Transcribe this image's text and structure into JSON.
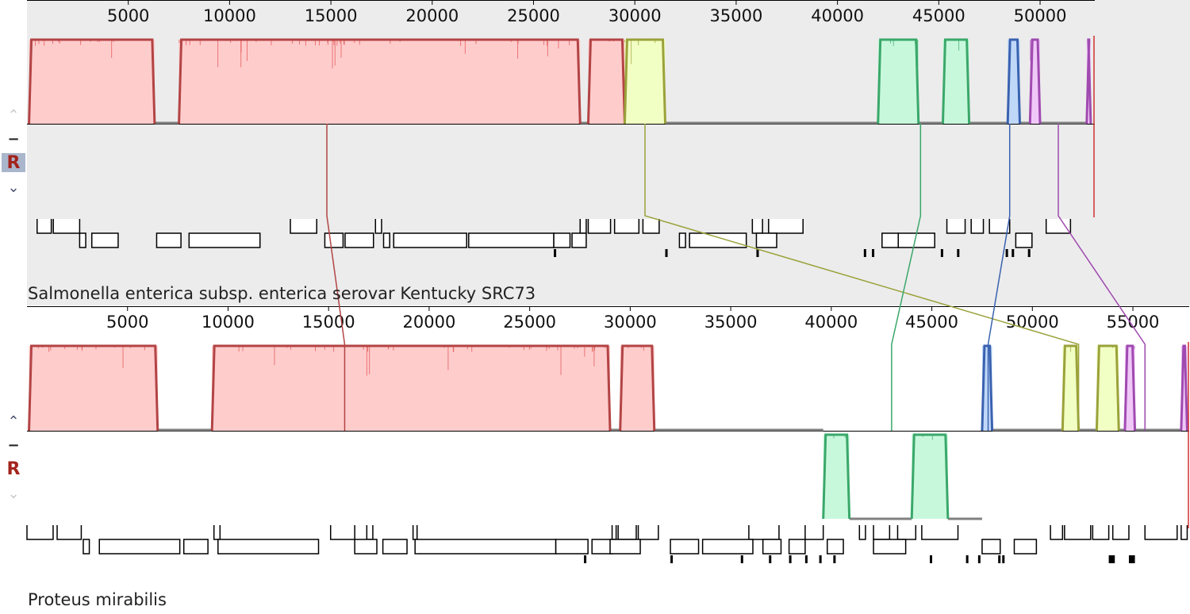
{
  "colors": {
    "red": "#b34445",
    "red_fill": "#ffcccc",
    "red_spike": "#e05050",
    "olive": "#9aa23a",
    "olive_fill": "#f2ffc4",
    "green": "#3aa86a",
    "green_fill": "#c8f8dc",
    "blue": "#3a62b0",
    "blue_fill": "#c0d8f8",
    "purple": "#a04ab0",
    "purple_fill": "#f0c8f8",
    "gap": "#808080",
    "panel1_bg": "#ececec",
    "panel2_bg": "#ffffff"
  },
  "panels": [
    {
      "id": "g1",
      "name": "Salmonella enterica subsp. enterica serovar Kentucky SRC73",
      "genome_length": 52700,
      "tick_values": [
        5000,
        10000,
        15000,
        20000,
        25000,
        30000,
        35000,
        40000,
        45000,
        50000
      ],
      "controls": {
        "up": "⌃",
        "minus": "−",
        "reverse": "R",
        "down": "⌄"
      },
      "blocks": [
        {
          "color": "red",
          "start": 100,
          "end": 6300,
          "strand": "+"
        },
        {
          "color": "red",
          "start": 7500,
          "end": 27300,
          "strand": "+"
        },
        {
          "color": "red",
          "start": 27700,
          "end": 29500,
          "strand": "+"
        },
        {
          "color": "olive",
          "start": 29500,
          "end": 31500,
          "strand": "+"
        },
        {
          "color": "green",
          "start": 42000,
          "end": 44000,
          "strand": "+"
        },
        {
          "color": "green",
          "start": 45200,
          "end": 46500,
          "strand": "+"
        },
        {
          "color": "blue",
          "start": 48400,
          "end": 49000,
          "strand": "+"
        },
        {
          "color": "purple",
          "start": 49500,
          "end": 50000,
          "strand": "+"
        },
        {
          "color": "purple",
          "start": 52300,
          "end": 52500,
          "strand": "+"
        }
      ],
      "genes_top": [
        [
          500,
          1200
        ],
        [
          1300,
          2600
        ],
        [
          13000,
          14300
        ],
        [
          17200,
          17500
        ],
        [
          27300,
          27600
        ],
        [
          27700,
          28800
        ],
        [
          29000,
          30200
        ],
        [
          30400,
          31200
        ],
        [
          35800,
          36300
        ],
        [
          36600,
          38300
        ],
        [
          45400,
          46300
        ],
        [
          46600,
          47200
        ],
        [
          47500,
          48500
        ],
        [
          50300,
          51500
        ]
      ],
      "genes_mid": [
        [
          2600,
          2900
        ],
        [
          3200,
          4500
        ],
        [
          6400,
          7600
        ],
        [
          8000,
          11500
        ],
        [
          14700,
          15600
        ],
        [
          15700,
          17100
        ],
        [
          17600,
          17900
        ],
        [
          18100,
          21700
        ],
        [
          21800,
          26000
        ],
        [
          26000,
          26800
        ],
        [
          26900,
          27600
        ],
        [
          32200,
          32500
        ],
        [
          32700,
          35500
        ],
        [
          36000,
          37000
        ],
        [
          42200,
          43000
        ],
        [
          43000,
          44800
        ],
        [
          48800,
          49600
        ]
      ],
      "genes_low": [
        [
          26000,
          26100
        ],
        [
          31500,
          31600
        ],
        [
          36000,
          36100
        ],
        [
          41300,
          41400
        ],
        [
          41700,
          41800
        ],
        [
          45100,
          45200
        ],
        [
          45900,
          46000
        ],
        [
          48300,
          48400
        ],
        [
          48600,
          48700
        ],
        [
          49400,
          49500
        ]
      ]
    },
    {
      "id": "g2",
      "name": "Proteus mirabilis",
      "genome_length": 57800,
      "tick_values": [
        5000,
        10000,
        15000,
        20000,
        25000,
        30000,
        35000,
        40000,
        45000,
        50000,
        55000
      ],
      "controls": {
        "up": "⌃",
        "minus": "−",
        "reverse": "R",
        "down": "⌄"
      },
      "blocks": [
        {
          "color": "red",
          "start": 100,
          "end": 6500,
          "strand": "+"
        },
        {
          "color": "red",
          "start": 9200,
          "end": 29000,
          "strand": "+"
        },
        {
          "color": "red",
          "start": 29500,
          "end": 31200,
          "strand": "+"
        },
        {
          "color": "green",
          "start": 39600,
          "end": 40900,
          "strand": "-"
        },
        {
          "color": "green",
          "start": 44000,
          "end": 45800,
          "strand": "-"
        },
        {
          "color": "blue",
          "start": 47500,
          "end": 48000,
          "strand": "+"
        },
        {
          "color": "olive",
          "start": 51500,
          "end": 52300,
          "strand": "+"
        },
        {
          "color": "olive",
          "start": 53200,
          "end": 54300,
          "strand": "+"
        },
        {
          "color": "purple",
          "start": 54600,
          "end": 55100,
          "strand": "+"
        },
        {
          "color": "purple",
          "start": 57400,
          "end": 57700,
          "strand": "+"
        }
      ],
      "genes_top": [
        [
          0,
          1300
        ],
        [
          1500,
          2700
        ],
        [
          9300,
          9600
        ],
        [
          15100,
          16300
        ],
        [
          16900,
          17200
        ],
        [
          19200,
          19400
        ],
        [
          29100,
          29300
        ],
        [
          29400,
          30300
        ],
        [
          30400,
          31400
        ],
        [
          35900,
          37400
        ],
        [
          38700,
          39600
        ],
        [
          41400,
          41700
        ],
        [
          42100,
          42900
        ],
        [
          43300,
          44200
        ],
        [
          44500,
          46300
        ],
        [
          50900,
          51500
        ],
        [
          51600,
          52900
        ],
        [
          53000,
          53800
        ],
        [
          54000,
          54800
        ],
        [
          55600,
          57200
        ],
        [
          57400,
          57700
        ]
      ],
      "genes_mid": [
        [
          2800,
          3100
        ],
        [
          3600,
          7600
        ],
        [
          7800,
          9000
        ],
        [
          9500,
          14500
        ],
        [
          16300,
          17400
        ],
        [
          17700,
          18900
        ],
        [
          19300,
          26300
        ],
        [
          26300,
          27900
        ],
        [
          28100,
          29100
        ],
        [
          29000,
          30500
        ],
        [
          32000,
          33400
        ],
        [
          33600,
          36100
        ],
        [
          36600,
          37500
        ],
        [
          37900,
          38700
        ],
        [
          39800,
          40600
        ],
        [
          42100,
          43700
        ],
        [
          47500,
          48400
        ],
        [
          49100,
          50200
        ]
      ],
      "genes_low": [
        [
          27700,
          27800
        ],
        [
          32000,
          32100
        ],
        [
          35500,
          35600
        ],
        [
          36900,
          37000
        ],
        [
          37900,
          38000
        ],
        [
          38700,
          38800
        ],
        [
          39400,
          39500
        ],
        [
          40100,
          40200
        ],
        [
          44900,
          45000
        ],
        [
          46700,
          46800
        ],
        [
          47300,
          47400
        ],
        [
          48300,
          48400
        ],
        [
          48500,
          48600
        ],
        [
          53800,
          54100
        ],
        [
          54800,
          55100
        ]
      ]
    }
  ],
  "connections": [
    {
      "color": "red",
      "from": 14800,
      "to": 15800
    },
    {
      "color": "olive",
      "from": 30500,
      "to": 52300
    },
    {
      "color": "green",
      "from": 44100,
      "to": 43000
    },
    {
      "color": "blue",
      "from": 48500,
      "to": 47800
    },
    {
      "color": "purple",
      "from": 50900,
      "to": 55600
    }
  ]
}
